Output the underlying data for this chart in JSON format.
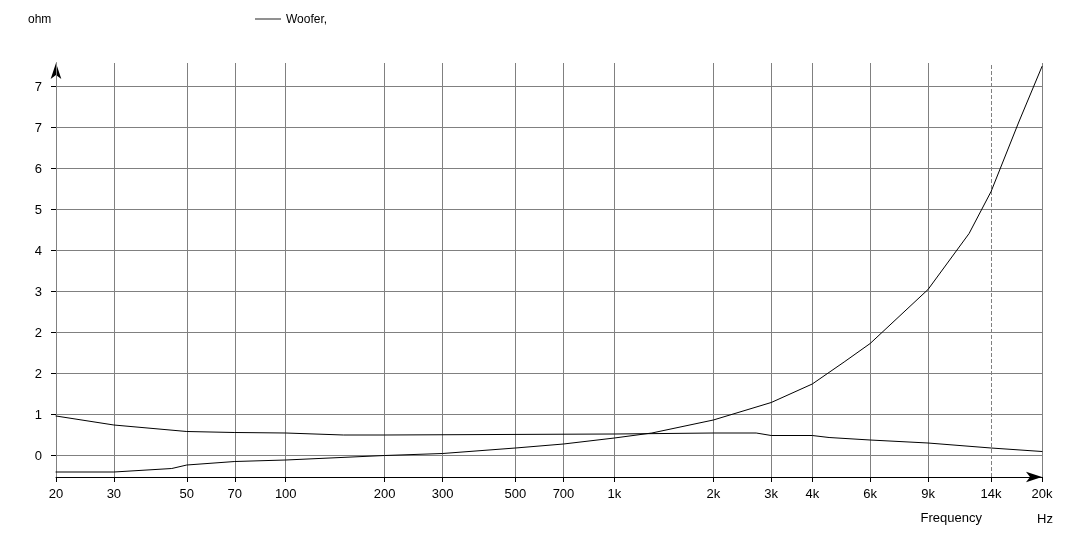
{
  "chart_data": {
    "type": "line",
    "xlabel": "Frequency",
    "ylabel": "ohm",
    "annotations": [
      "Hz"
    ],
    "log": "x",
    "grid": true,
    "legend": "top left",
    "marker": "none",
    "line_style": "solid",
    "xlim": [
      20,
      20000
    ],
    "xticks": [
      20,
      30,
      50,
      70,
      100,
      200,
      300,
      500,
      700,
      {
        "value": 1000,
        "label": "1k"
      },
      {
        "value": 2000,
        "label": "2k"
      },
      {
        "value": 3000,
        "label": "3k"
      },
      {
        "value": 4000,
        "label": "4k"
      },
      {
        "value": 6000,
        "label": "6k"
      },
      {
        "value": 9000,
        "label": "9k"
      },
      {
        "value": 14000,
        "label": "14k"
      },
      {
        "value": 20000,
        "label": "20k"
      }
    ],
    "ylim": [
      -0.44,
      7.84
    ],
    "yticks": [
      {
        "value": 0,
        "label": "0"
      },
      {
        "value": 0.82,
        "label": "1"
      },
      {
        "value": 1.64,
        "label": "2"
      },
      {
        "value": 2.46,
        "label": "2"
      },
      {
        "value": 3.28,
        "label": "3"
      },
      {
        "value": 4.1,
        "label": "4"
      },
      {
        "value": 4.92,
        "label": "5"
      },
      {
        "value": 5.74,
        "label": "6"
      },
      {
        "value": 6.56,
        "label": "7"
      },
      {
        "value": 7.38,
        "label": "7"
      }
    ],
    "ref_lines": [
      {
        "axis": "x",
        "value": 14000,
        "line_style": "dashed",
        "color": "#808080"
      }
    ],
    "series": [
      {
        "name": "Woofer,",
        "color": "#000000",
        "x": [
          20,
          30,
          45,
          50,
          70,
          100,
          200,
          300,
          500,
          700,
          1000,
          1300,
          2000,
          3000,
          4000,
          5000,
          6000,
          9000,
          12000,
          14000,
          17000,
          20000
        ],
        "values": [
          -0.34,
          -0.34,
          -0.27,
          -0.2,
          -0.13,
          -0.1,
          -0.01,
          0.03,
          0.14,
          0.22,
          0.34,
          0.44,
          0.7,
          1.05,
          1.42,
          1.86,
          2.23,
          3.31,
          4.43,
          5.27,
          6.66,
          7.77
        ]
      },
      {
        "color": "#000000",
        "x": [
          20,
          30,
          50,
          70,
          100,
          150,
          200,
          1000,
          2000,
          2700,
          3000,
          4000,
          4500,
          6000,
          9000,
          14000,
          20000
        ],
        "values": [
          0.78,
          0.6,
          0.47,
          0.45,
          0.44,
          0.4,
          0.4,
          0.42,
          0.44,
          0.44,
          0.39,
          0.39,
          0.35,
          0.3,
          0.24,
          0.14,
          0.07
        ]
      }
    ]
  }
}
